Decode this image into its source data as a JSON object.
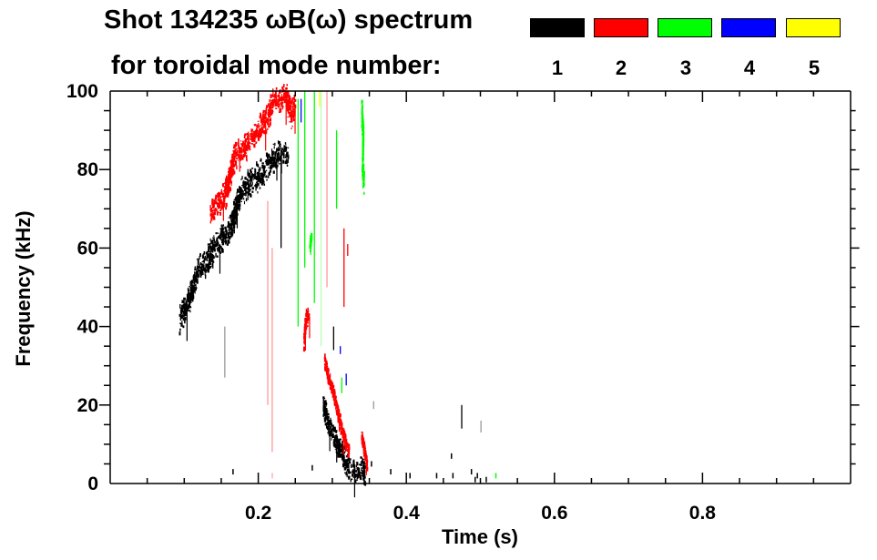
{
  "chart_data": {
    "type": "heatmap",
    "title": "Shot 134235 ωB(ω) spectrum",
    "subtitle": "for toroidal mode number:",
    "xlabel": "Time (s)",
    "ylabel": "Frequency (kHz)",
    "xlim": [
      0,
      1.0
    ],
    "ylim": [
      0,
      100
    ],
    "xticks": [
      {
        "v": 0.2,
        "label": "0.2"
      },
      {
        "v": 0.4,
        "label": "0.4"
      },
      {
        "v": 0.6,
        "label": "0.6"
      },
      {
        "v": 0.8,
        "label": "0.8"
      }
    ],
    "yticks": [
      {
        "v": 0,
        "label": "0"
      },
      {
        "v": 20,
        "label": "20"
      },
      {
        "v": 40,
        "label": "40"
      },
      {
        "v": 60,
        "label": "60"
      },
      {
        "v": 80,
        "label": "80"
      },
      {
        "v": 100,
        "label": "100"
      }
    ],
    "x_minor_step": 0.05,
    "y_minor_step": 5,
    "legend": [
      {
        "mode": "1",
        "color": "#000000"
      },
      {
        "mode": "2",
        "color": "#ff0000"
      },
      {
        "mode": "3",
        "color": "#00ff00"
      },
      {
        "mode": "4",
        "color": "#0000ff"
      },
      {
        "mode": "5",
        "color": "#ffff00"
      }
    ],
    "legend_placement": "top-right",
    "tracks": [
      {
        "mode": "1",
        "color": "#000000",
        "spread": 6,
        "points": [
          [
            0.094,
            41.5
          ],
          [
            0.105,
            46
          ],
          [
            0.119,
            54
          ],
          [
            0.13,
            56
          ],
          [
            0.139,
            60
          ],
          [
            0.15,
            62
          ],
          [
            0.163,
            65
          ],
          [
            0.17,
            70
          ],
          [
            0.176,
            74
          ],
          [
            0.19,
            77
          ],
          [
            0.205,
            79
          ],
          [
            0.218,
            82
          ],
          [
            0.229,
            85
          ],
          [
            0.241,
            84
          ]
        ]
      },
      {
        "mode": "1",
        "color": "#000000",
        "spread": 5,
        "points": [
          [
            0.288,
            20
          ],
          [
            0.295,
            15
          ],
          [
            0.305,
            11
          ],
          [
            0.315,
            7
          ],
          [
            0.323,
            4
          ],
          [
            0.333,
            3
          ],
          [
            0.34,
            4
          ],
          [
            0.345,
            2
          ]
        ]
      },
      {
        "mode": "2",
        "color": "#ff0000",
        "spread": 6,
        "points": [
          [
            0.135,
            69
          ],
          [
            0.145,
            71
          ],
          [
            0.156,
            74
          ],
          [
            0.168,
            83
          ],
          [
            0.18,
            85
          ],
          [
            0.196,
            89
          ],
          [
            0.21,
            93
          ],
          [
            0.221,
            97
          ],
          [
            0.237,
            99
          ],
          [
            0.245,
            94
          ],
          [
            0.25,
            96
          ]
        ]
      },
      {
        "mode": "2",
        "color": "#ff0000",
        "spread": 4,
        "points": [
          [
            0.262,
            36
          ],
          [
            0.265,
            42
          ],
          [
            0.269,
            43
          ]
        ]
      },
      {
        "mode": "2",
        "color": "#ff0000",
        "spread": 3,
        "points": [
          [
            0.29,
            31
          ],
          [
            0.297,
            26
          ],
          [
            0.303,
            22
          ],
          [
            0.31,
            16
          ],
          [
            0.319,
            10
          ],
          [
            0.323,
            8
          ]
        ]
      },
      {
        "mode": "2",
        "color": "#ff0000",
        "spread": 3,
        "points": [
          [
            0.34,
            12
          ],
          [
            0.344,
            8
          ],
          [
            0.347,
            5
          ]
        ]
      },
      {
        "mode": "3",
        "color": "#00ff00",
        "spread": 6,
        "points": [
          [
            0.34,
            95
          ],
          [
            0.342,
            88
          ],
          [
            0.341,
            80
          ],
          [
            0.343,
            77
          ]
        ]
      },
      {
        "mode": "3",
        "color": "#00ff00",
        "spread": 3,
        "points": [
          [
            0.27,
            60
          ],
          [
            0.272,
            63
          ]
        ]
      }
    ],
    "streaks": [
      {
        "color": "#ff9999",
        "t": 0.212,
        "f": [
          20,
          72
        ]
      },
      {
        "color": "#ff9999",
        "t": 0.218,
        "f": [
          8,
          60
        ]
      },
      {
        "color": "#000000",
        "t": 0.23,
        "f": [
          60,
          85
        ]
      },
      {
        "color": "#999999",
        "t": 0.154,
        "f": [
          27,
          40
        ]
      },
      {
        "color": "#00ff00",
        "t": 0.253,
        "f": [
          40,
          98
        ]
      },
      {
        "color": "#00ff00",
        "t": 0.262,
        "f": [
          55,
          100
        ]
      },
      {
        "color": "#00ff00",
        "t": 0.275,
        "f": [
          46,
          100
        ]
      },
      {
        "color": "#b6ffb6",
        "t": 0.284,
        "f": [
          35,
          100
        ]
      },
      {
        "color": "#ff9999",
        "t": 0.292,
        "f": [
          50,
          100
        ]
      },
      {
        "color": "#ff0000",
        "t": 0.315,
        "f": [
          45,
          65
        ]
      },
      {
        "color": "#ff0000",
        "t": 0.32,
        "f": [
          58,
          61
        ]
      },
      {
        "color": "#00ff00",
        "t": 0.305,
        "f": [
          70,
          90
        ]
      },
      {
        "color": "#0000ff",
        "t": 0.257,
        "f": [
          92,
          98
        ]
      },
      {
        "color": "#ffff00",
        "t": 0.282,
        "f": [
          96,
          100
        ]
      },
      {
        "color": "#0000ff",
        "t": 0.31,
        "f": [
          33,
          35
        ]
      },
      {
        "color": "#0000ff",
        "t": 0.318,
        "f": [
          25,
          28
        ]
      },
      {
        "color": "#00ff00",
        "t": 0.312,
        "f": [
          23,
          27
        ]
      },
      {
        "color": "#000000",
        "t": 0.301,
        "f": [
          34,
          40
        ]
      },
      {
        "color": "#999999",
        "t": 0.355,
        "f": [
          19,
          21
        ]
      },
      {
        "color": "#000000",
        "t": 0.474,
        "f": [
          14,
          20
        ]
      },
      {
        "color": "#999999",
        "t": 0.5,
        "f": [
          13,
          16
        ]
      }
    ],
    "specks": [
      {
        "color": "#000000",
        "t": 0.165,
        "f": 3
      },
      {
        "color": "#ffb0b0",
        "t": 0.218,
        "f": 2
      },
      {
        "color": "#000000",
        "t": 0.272,
        "f": 4
      },
      {
        "color": "#000000",
        "t": 0.404,
        "f": 2
      },
      {
        "color": "#000000",
        "t": 0.44,
        "f": 2
      },
      {
        "color": "#000000",
        "t": 0.46,
        "f": 7
      },
      {
        "color": "#000000",
        "t": 0.462,
        "f": 2
      },
      {
        "color": "#000000",
        "t": 0.487,
        "f": 3
      },
      {
        "color": "#000000",
        "t": 0.492,
        "f": 1
      },
      {
        "color": "#000000",
        "t": 0.495,
        "f": 2
      },
      {
        "color": "#000000",
        "t": 0.507,
        "f": 1
      },
      {
        "color": "#00ff00",
        "t": 0.52,
        "f": 2
      },
      {
        "color": "#000000",
        "t": 0.378,
        "f": 3
      },
      {
        "color": "#000000",
        "t": 0.352,
        "f": 5
      }
    ]
  }
}
